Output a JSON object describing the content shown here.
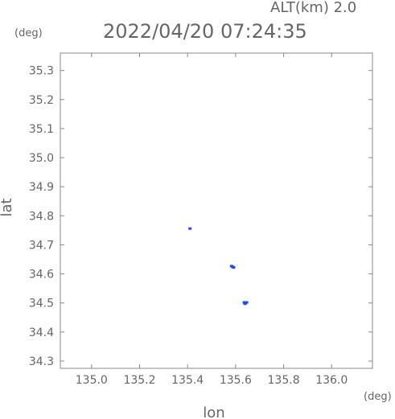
{
  "header": {
    "alt_label": "ALT(km) 2.0",
    "timestamp": "2022/04/20 07:24:35",
    "y_unit": "(deg)",
    "x_unit": "(deg)"
  },
  "chart_data": {
    "type": "scatter",
    "title": "2022/04/20 07:24:35",
    "subtitle": "ALT(km) 2.0",
    "xlabel": "lon",
    "ylabel": "lat",
    "x_unit": "(deg)",
    "y_unit": "(deg)",
    "xlim": [
      134.87,
      136.17
    ],
    "ylim": [
      34.275,
      35.36
    ],
    "x_ticks": [
      135.0,
      135.2,
      135.4,
      135.6,
      135.8,
      136.0
    ],
    "x_tick_labels": [
      "135.0",
      "135.2",
      "135.4",
      "135.6",
      "135.8",
      "136.0"
    ],
    "y_ticks": [
      34.3,
      34.4,
      34.5,
      34.6,
      34.7,
      34.8,
      34.9,
      35.0,
      35.1,
      35.2,
      35.3
    ],
    "y_tick_labels": [
      "34.3",
      "34.4",
      "34.5",
      "34.6",
      "34.7",
      "34.8",
      "34.9",
      "35.0",
      "35.1",
      "35.2",
      "35.3"
    ],
    "grid": false,
    "point_color": "#1f4fd8",
    "points": [
      {
        "x": 135.41,
        "y": 34.756
      },
      {
        "x": 135.583,
        "y": 34.627
      },
      {
        "x": 135.588,
        "y": 34.624
      },
      {
        "x": 135.592,
        "y": 34.622
      },
      {
        "x": 135.636,
        "y": 34.502
      },
      {
        "x": 135.641,
        "y": 34.5
      },
      {
        "x": 135.646,
        "y": 34.502
      },
      {
        "x": 135.639,
        "y": 34.497
      }
    ]
  }
}
